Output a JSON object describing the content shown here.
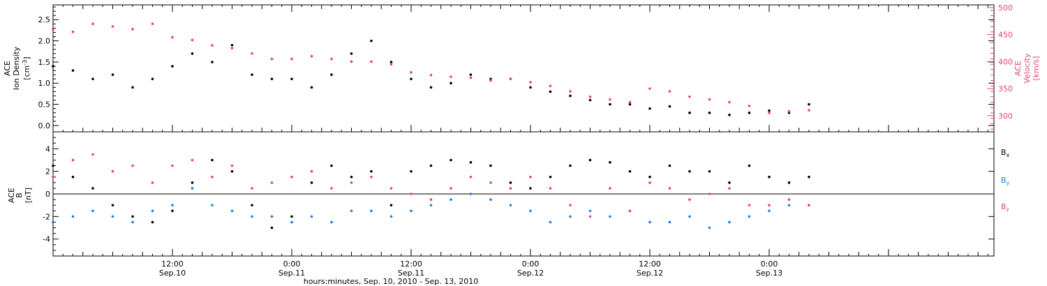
{
  "colors": {
    "black_series": "#000000",
    "velocity": "#e8446e",
    "bx": "#000000",
    "by": "#1f7fd9",
    "bz": "#e8446e",
    "right_axis": "#e8446e"
  },
  "footer": {
    "xlabel": "hours:minutes, Sep. 10, 2010 - Sep. 13, 2010"
  },
  "chart_data": [
    {
      "type": "scatter",
      "panel": "top",
      "ylabel_lines": [
        "ACE",
        "Ion Density"
      ],
      "ylabel_unit": "[cm",
      "ylabel_unit_sup": "-3",
      "ylabel_unit_end": "]",
      "ylim": [
        -0.15,
        2.85
      ],
      "yticks": [
        0.0,
        0.5,
        1.0,
        1.5,
        2.0,
        2.5
      ],
      "ytick_labels": [
        "0.0",
        "0.5",
        "1.0",
        "1.5",
        "2.0",
        "2.5"
      ],
      "right_axis": {
        "ylabel_lines": [
          "ACE",
          "Velocity",
          "[km/s]"
        ],
        "ylim": [
          270,
          505
        ],
        "yticks": [
          300,
          350,
          400,
          450,
          500
        ],
        "ytick_labels": [
          "300",
          "350",
          "400",
          "450",
          "500"
        ]
      },
      "x_range_hours": [
        0,
        94.6
      ],
      "xticks_hours": [
        12,
        24,
        36,
        48,
        60,
        72
      ],
      "xtick_labels": [
        [
          "12:00",
          "Sep.10"
        ],
        [
          "0:00",
          "Sep.11"
        ],
        [
          "12:00",
          "Sep.11"
        ],
        [
          "0:00",
          "Sep.12"
        ],
        [
          "12:00",
          "Sep.12"
        ],
        [
          "0:00",
          "Sep.13"
        ]
      ],
      "series": [
        {
          "axis": "left",
          "color_key": "black_series",
          "x": [
            0,
            2,
            4,
            6,
            8,
            10,
            12,
            14,
            16,
            18,
            20,
            22,
            24,
            26,
            28,
            30,
            32,
            34,
            36,
            38,
            40,
            42,
            44,
            46,
            48,
            50,
            52,
            54,
            56,
            58,
            60,
            62,
            64,
            66,
            68,
            70,
            72,
            74,
            76
          ],
          "y": [
            1.4,
            1.3,
            1.1,
            1.2,
            0.9,
            1.1,
            1.4,
            1.7,
            1.5,
            1.9,
            1.2,
            1.1,
            1.1,
            0.9,
            1.2,
            1.7,
            2.0,
            1.5,
            1.1,
            0.9,
            1.0,
            1.2,
            1.1,
            1.1,
            0.9,
            0.8,
            0.7,
            0.6,
            0.5,
            0.5,
            0.4,
            0.45,
            0.3,
            0.3,
            0.25,
            0.3,
            0.35,
            0.3,
            0.5
          ]
        },
        {
          "axis": "right",
          "color_key": "velocity",
          "x": [
            0,
            2,
            4,
            6,
            8,
            10,
            12,
            14,
            16,
            18,
            20,
            22,
            24,
            26,
            28,
            30,
            32,
            34,
            36,
            38,
            40,
            42,
            44,
            46,
            48,
            50,
            52,
            54,
            56,
            58,
            60,
            62,
            64,
            66,
            68,
            70,
            72,
            74,
            76
          ],
          "y": [
            460,
            455,
            470,
            465,
            460,
            470,
            445,
            440,
            430,
            425,
            415,
            405,
            405,
            410,
            405,
            400,
            400,
            395,
            380,
            375,
            372,
            370,
            365,
            368,
            362,
            355,
            345,
            335,
            330,
            325,
            350,
            345,
            335,
            330,
            325,
            318,
            305,
            308,
            310
          ]
        }
      ]
    },
    {
      "type": "scatter",
      "panel": "bottom",
      "ylabel_lines": [
        "ACE",
        "B"
      ],
      "ylabel_unit": "[nT]",
      "ylim": [
        -5.5,
        5.5
      ],
      "yticks": [
        -4,
        -2,
        0,
        2,
        4
      ],
      "ytick_labels": [
        "-4",
        "-2",
        "0",
        "2",
        "4"
      ],
      "zero_line": 0,
      "x_range_hours": [
        0,
        94.6
      ],
      "legend": [
        {
          "base": "B",
          "sub": "x",
          "color_key": "bx"
        },
        {
          "base": "B",
          "sub": "y",
          "color_key": "by"
        },
        {
          "base": "B",
          "sub": "z",
          "color_key": "bz"
        }
      ],
      "legend_placement": "right",
      "series": [
        {
          "color_key": "bx",
          "x": [
            0,
            2,
            4,
            6,
            8,
            10,
            12,
            14,
            16,
            18,
            20,
            22,
            24,
            26,
            28,
            30,
            32,
            34,
            36,
            38,
            40,
            42,
            44,
            46,
            48,
            50,
            52,
            54,
            56,
            58,
            60,
            62,
            64,
            66,
            68,
            70,
            72,
            74,
            76
          ],
          "y": [
            2.5,
            1.5,
            0.5,
            -1.0,
            -2.0,
            -2.5,
            -1.5,
            1.0,
            3.0,
            2.0,
            -1.0,
            -3.0,
            -2.0,
            1.0,
            2.5,
            1.5,
            2.0,
            -1.0,
            2.0,
            2.5,
            3.0,
            2.8,
            2.5,
            1.0,
            0.5,
            1.5,
            2.5,
            3.0,
            2.8,
            2.0,
            1.5,
            2.5,
            2.0,
            2.0,
            1.0,
            2.5,
            1.5,
            1.0,
            1.5
          ]
        },
        {
          "color_key": "by",
          "x": [
            0,
            2,
            4,
            6,
            8,
            10,
            12,
            14,
            16,
            18,
            20,
            22,
            24,
            26,
            28,
            30,
            32,
            34,
            36,
            38,
            40,
            42,
            44,
            46,
            48,
            50,
            52,
            54,
            56,
            58,
            60,
            62,
            64,
            66,
            68,
            70,
            72,
            74,
            76
          ],
          "y": [
            -2.5,
            -2.0,
            -1.5,
            -2.0,
            -2.5,
            -1.5,
            -1.0,
            0.5,
            -1.0,
            -1.5,
            -2.0,
            -2.0,
            -2.5,
            -2.0,
            -2.5,
            -1.5,
            -1.5,
            -2.0,
            -1.5,
            -1.0,
            -0.5,
            0.0,
            -0.5,
            -1.0,
            -1.5,
            -2.5,
            -2.0,
            -1.5,
            -2.0,
            -1.5,
            -2.5,
            -2.5,
            -2.0,
            -3.0,
            -2.5,
            -2.0,
            -1.5,
            -1.0,
            -1.0
          ]
        },
        {
          "color_key": "bz",
          "x": [
            0,
            2,
            4,
            6,
            8,
            10,
            12,
            14,
            16,
            18,
            20,
            22,
            24,
            26,
            28,
            30,
            32,
            34,
            36,
            38,
            40,
            42,
            44,
            46,
            48,
            50,
            52,
            54,
            56,
            58,
            60,
            62,
            64,
            66,
            68,
            70,
            72,
            74,
            76
          ],
          "y": [
            1.5,
            3.0,
            3.5,
            2.0,
            2.5,
            1.0,
            2.5,
            3.0,
            1.5,
            2.5,
            0.5,
            1.0,
            1.5,
            2.0,
            0.5,
            1.0,
            1.5,
            0.5,
            0.0,
            -0.5,
            0.5,
            1.5,
            1.0,
            0.5,
            1.5,
            0.5,
            -1.0,
            -2.0,
            0.5,
            -1.5,
            1.0,
            0.5,
            -0.5,
            0.0,
            0.5,
            -1.0,
            -1.0,
            -0.5,
            -1.0
          ]
        }
      ]
    }
  ]
}
